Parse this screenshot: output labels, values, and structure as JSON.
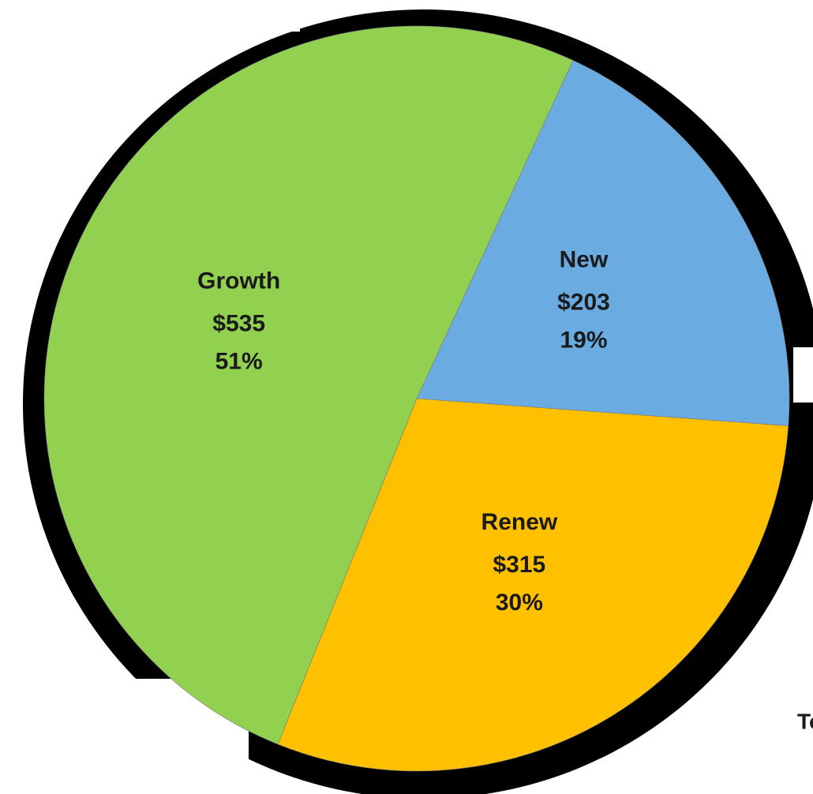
{
  "chart_data": {
    "type": "pie",
    "categories": [
      "New",
      "Renew",
      "Growth"
    ],
    "values": [
      203,
      315,
      535
    ],
    "value_labels": [
      "$203",
      "$315",
      "$535"
    ],
    "percents": [
      19,
      30,
      51
    ],
    "percent_labels": [
      "19%",
      "30%",
      "51%"
    ],
    "colors": [
      "#6aace2",
      "#ffc000",
      "#92d050"
    ],
    "annotation": "To"
  }
}
